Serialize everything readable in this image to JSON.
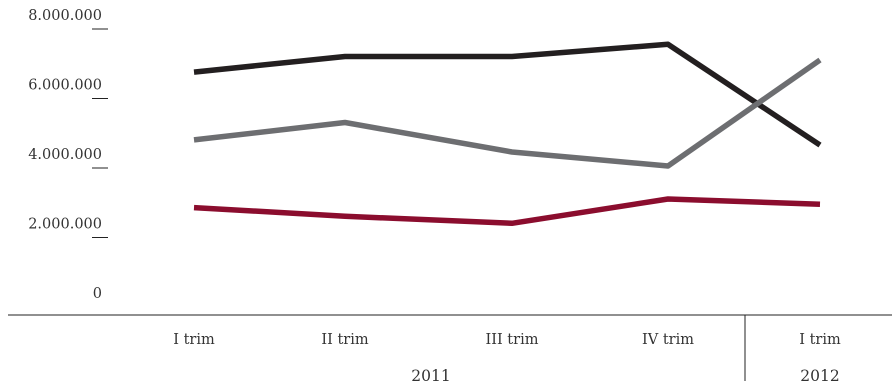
{
  "chart_data": {
    "type": "line",
    "title": "",
    "xlabel": "",
    "ylabel": "",
    "ylim": [
      0,
      8000000
    ],
    "yticks": [
      0,
      2000000,
      4000000,
      6000000,
      8000000
    ],
    "ytick_labels": [
      "0",
      "2.000.000",
      "4.000.000",
      "6.000.000",
      "8.000.000"
    ],
    "categories": [
      "I trim",
      "II trim",
      "III trim",
      "IV trim",
      "I trim"
    ],
    "groups": [
      {
        "label": "2011",
        "span": [
          0,
          3
        ]
      },
      {
        "label": "2012",
        "span": [
          4,
          4
        ]
      }
    ],
    "grid": false,
    "legend": "none",
    "series": [
      {
        "color": "#231f20",
        "values": [
          6500000,
          6950000,
          6950000,
          7300000,
          4400000
        ]
      },
      {
        "color": "#6d6e71",
        "values": [
          4550000,
          5050000,
          4200000,
          3800000,
          6850000
        ]
      },
      {
        "color": "#8b0d2e",
        "values": [
          2600000,
          2350000,
          2150000,
          2850000,
          2700000
        ]
      }
    ]
  }
}
